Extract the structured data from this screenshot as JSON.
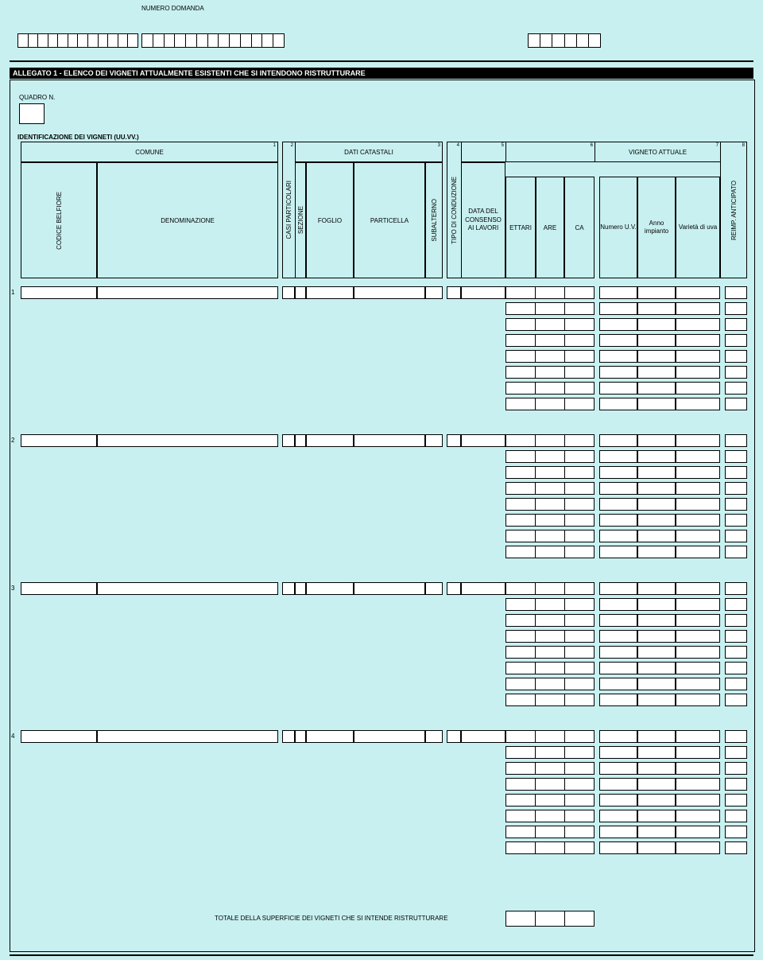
{
  "header": {
    "numero_domanda_label": "NUMERO DOMANDA",
    "top_box1_cells": 12,
    "top_box2_cells": 13,
    "top_box3_cells": 6
  },
  "title_bar": "ALLEGATO 1 - ELENCO DEI VIGNETI ATTUALMENTE ESISTENTI CHE SI INTENDONO RISTRUTTURARE",
  "quadro_label": "QUADRO N.",
  "identificazione_label": "IDENTIFICAZIONE DEI VIGNETI (UU.VV.)",
  "headers": {
    "comune": "COMUNE",
    "dati_catastali": "DATI CATASTALI",
    "vigneto_attuale": "VIGNETO ATTUALE",
    "codice_belfiore": "CODICE BELFIORE",
    "denominazione": "DENOMINAZIONE",
    "casi_particolari": "CASI PARTICOLARI",
    "sezione": "SEZIONE",
    "foglio": "FOGLIO",
    "particella": "PARTICELLA",
    "subalterno": "SUBALTERNO",
    "tipo_di_conduzione": "TIPO  DI  CONDUZIONE",
    "data_del_consenso": "DATA DEL CONSENSO AI LAVORI",
    "ettari": "ETTARI",
    "are": "ARE",
    "ca": "CA",
    "numero_uv": "Numero U.V.",
    "anno_impianto": "Anno impianto",
    "varieta_uva": "Varietà di uva",
    "reimp_anticipato": "REIMP. ANTICIPATO"
  },
  "groups": [
    1,
    2,
    3,
    4
  ],
  "sub_rows_per_group": 8,
  "totale_label": "TOTALE DELLA SUPERFICIE DEI VIGNETI CHE SI INTENDE RISTRUTTURARE"
}
